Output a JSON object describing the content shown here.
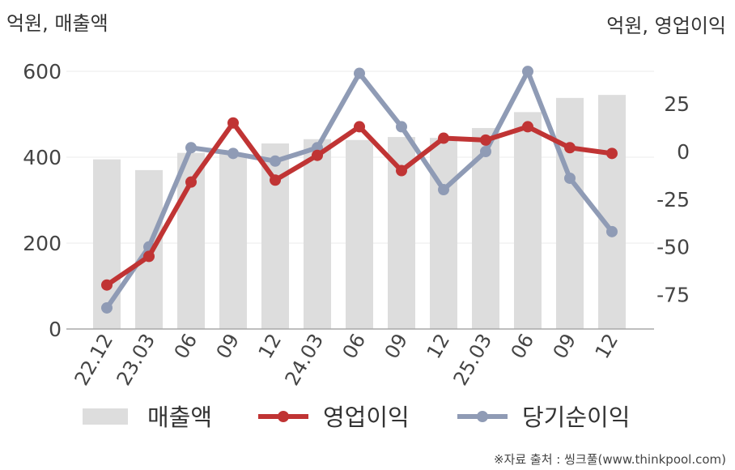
{
  "chart_data": {
    "type": "bar",
    "title": "",
    "y_left_label": "억원, 매출액",
    "y_right_label": "억원, 영업이익",
    "categories": [
      "22.12",
      "23.03",
      "06",
      "09",
      "12",
      "24.03",
      "06",
      "09",
      "12",
      "25.03",
      "06",
      "09",
      "12"
    ],
    "y_left_ticks": [
      "0",
      "200",
      "400",
      "600"
    ],
    "y_left_range": [
      0,
      600
    ],
    "y_right_ticks": [
      "25",
      "0",
      "-25",
      "-50",
      "-75"
    ],
    "y_right_range": [
      -95,
      50
    ],
    "grid": true,
    "legend_position": "bottom",
    "series": [
      {
        "name": "매출액",
        "type": "bar",
        "axis": "left",
        "color": "#dddddd",
        "values": [
          395,
          370,
          410,
          408,
          432,
          442,
          440,
          447,
          445,
          468,
          505,
          538,
          545
        ]
      },
      {
        "name": "영업이익",
        "type": "line",
        "axis": "right",
        "color": "#c03434",
        "values": [
          -70,
          -55,
          -16,
          15,
          -15,
          -2,
          13,
          -10,
          7,
          6,
          13,
          2,
          -1
        ]
      },
      {
        "name": "당기순이익",
        "type": "line",
        "axis": "right",
        "color": "#8f9bb5",
        "values": [
          -82,
          -50,
          2,
          -1,
          -5,
          2,
          41,
          13,
          -20,
          0,
          42,
          -14,
          -42
        ]
      }
    ]
  },
  "source": "※자료 출처 : 씽크풀(www.thinkpool.com)"
}
